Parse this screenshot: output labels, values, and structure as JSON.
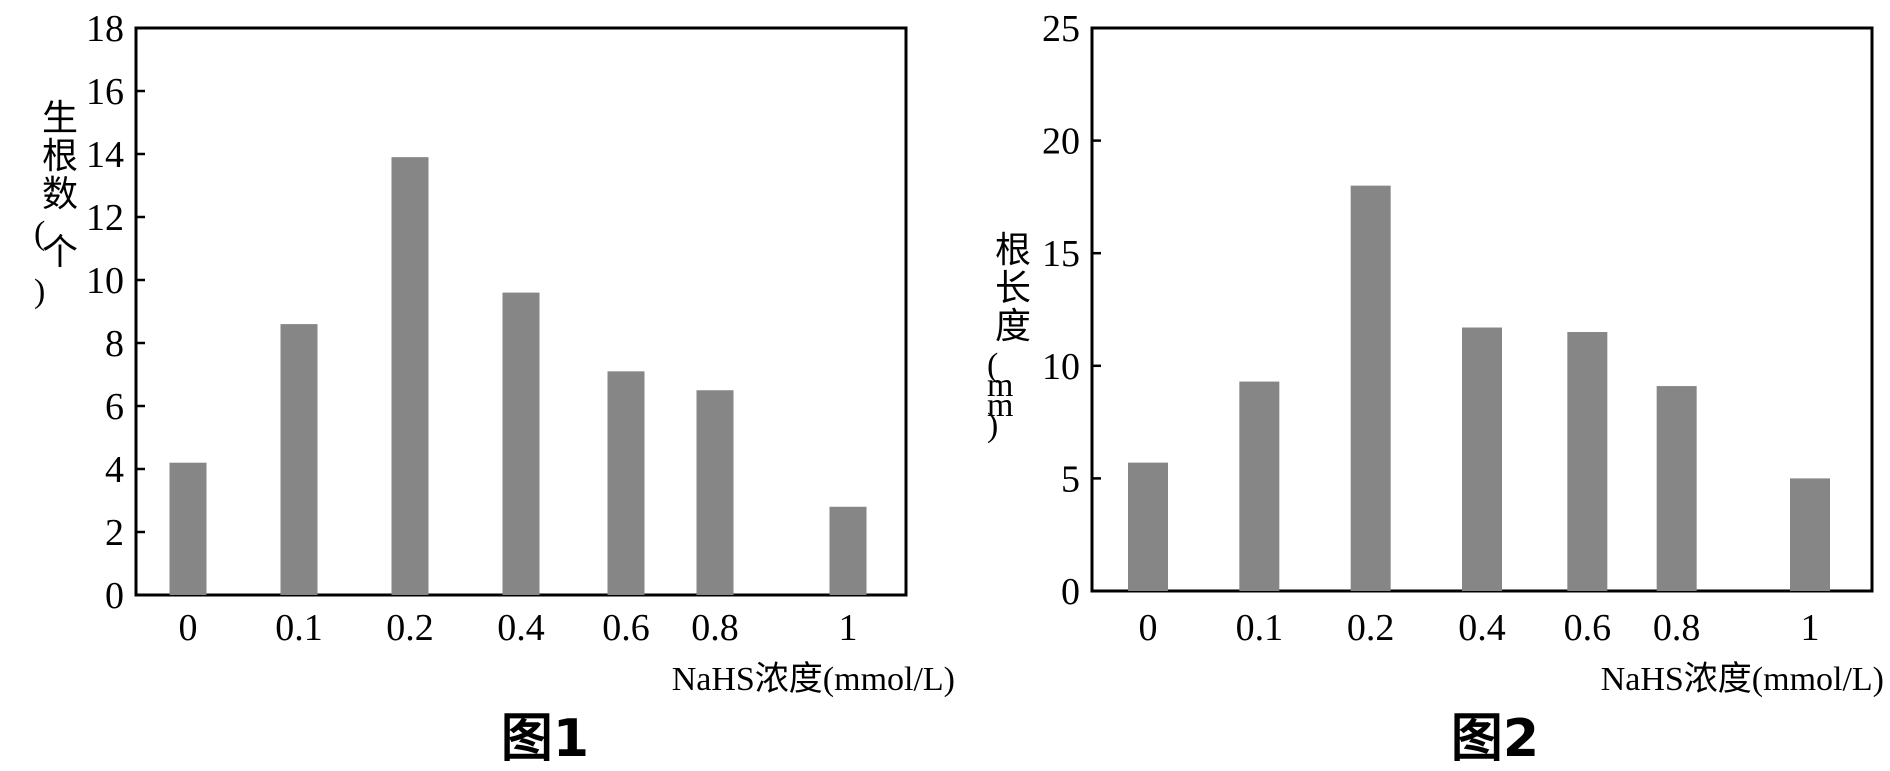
{
  "bar_color": "#868686",
  "axis_color": "#000000",
  "chart_data": [
    {
      "type": "bar",
      "caption": "图1",
      "categories": [
        "0",
        "0.1",
        "0.2",
        "0.4",
        "0.6",
        "0.8",
        "1"
      ],
      "values": [
        4.2,
        8.6,
        13.9,
        9.6,
        7.1,
        6.5,
        2.8
      ],
      "ylabel": "生根数(个)",
      "xlabel": "NaHS浓度(mmol/L)",
      "ylim": [
        0,
        18
      ],
      "yticks": [
        "0",
        "2",
        "4",
        "6",
        "8",
        "10",
        "12",
        "14",
        "16",
        "18"
      ],
      "grid": false,
      "legend": "none"
    },
    {
      "type": "bar",
      "caption": "图2",
      "categories": [
        "0",
        "0.1",
        "0.2",
        "0.4",
        "0.6",
        "0.8",
        "1"
      ],
      "values": [
        5.7,
        9.3,
        18.0,
        11.7,
        11.5,
        9.1,
        5.0
      ],
      "ylabel": "根长度(mm)",
      "xlabel": "NaHS浓度(mmol/L)",
      "ylim": [
        0,
        25
      ],
      "yticks": [
        "0",
        "5",
        "10",
        "15",
        "20",
        "25"
      ],
      "grid": false,
      "legend": "none"
    }
  ]
}
